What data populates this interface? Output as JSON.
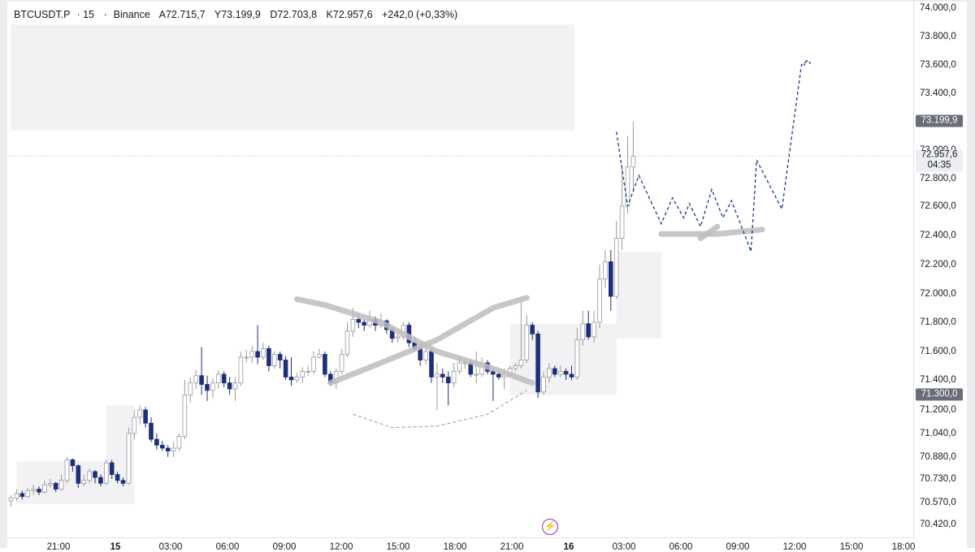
{
  "header": {
    "symbol": "BTCUSDT.P",
    "interval": "15",
    "exchange": "Binance",
    "open": "A72.715,7",
    "high": "Y73.199,9",
    "low": "D72.703,8",
    "close": "K72.957,6",
    "change": "+242,0 (+0,33%)"
  },
  "price_tags": {
    "high_level": "73.199,9",
    "last_price": "72.957,6",
    "countdown": "04:35",
    "low_level": "71.300,0"
  },
  "colors": {
    "bear_candle": "#1e2f7a",
    "bull_candle": "#c9c9c9",
    "zone_fill": "#f2f2f4",
    "projection": "#1e3a8a",
    "drawing_stroke": "#bdbdbd",
    "alert_icon": "#9c27b0"
  },
  "icons": {
    "alert": "lightning-bolt-icon"
  },
  "chart_data": {
    "type": "candlestick",
    "ylim": [
      70330,
      74030
    ],
    "x_tick_labels": [
      "21:00",
      "15",
      "03:00",
      "06:00",
      "09:00",
      "12:00",
      "15:00",
      "18:00",
      "21:00",
      "16",
      "03:00",
      "06:00",
      "09:00",
      "12:00",
      "15:00",
      "18:00"
    ],
    "y_tick_labels": [
      {
        "v": 74000,
        "label": "74.000,0"
      },
      {
        "v": 73800,
        "label": "73.800,0"
      },
      {
        "v": 73600,
        "label": "73.600,0"
      },
      {
        "v": 73400,
        "label": "73.400,0"
      },
      {
        "v": 73000,
        "label": "73.000,0"
      },
      {
        "v": 72800,
        "label": "72.800,0"
      },
      {
        "v": 72600,
        "label": "72.600,0"
      },
      {
        "v": 72400,
        "label": "72.400,0"
      },
      {
        "v": 72200,
        "label": "72.200,0"
      },
      {
        "v": 72000,
        "label": "72.000,0"
      },
      {
        "v": 71800,
        "label": "71.800,0"
      },
      {
        "v": 71600,
        "label": "71.600,0"
      },
      {
        "v": 71400,
        "label": "71.400,0"
      },
      {
        "v": 71200,
        "label": "71.200,0"
      },
      {
        "v": 71040,
        "label": "71.040,0"
      },
      {
        "v": 70880,
        "label": "70.880,0"
      },
      {
        "v": 70730,
        "label": "70.730,0"
      },
      {
        "v": 70570,
        "label": "70.570,0"
      },
      {
        "v": 70420,
        "label": "70.420,0"
      }
    ],
    "candles": [
      [
        70580,
        70600,
        70540,
        70620
      ],
      [
        70600,
        70630,
        70580,
        70660
      ],
      [
        70630,
        70610,
        70590,
        70650
      ],
      [
        70610,
        70650,
        70600,
        70670
      ],
      [
        70650,
        70660,
        70620,
        70690
      ],
      [
        70660,
        70640,
        70620,
        70680
      ],
      [
        70640,
        70690,
        70630,
        70720
      ],
      [
        70690,
        70700,
        70670,
        70730
      ],
      [
        70700,
        70660,
        70640,
        70710
      ],
      [
        70660,
        70720,
        70650,
        70760
      ],
      [
        70720,
        70860,
        70700,
        70880
      ],
      [
        70860,
        70820,
        70780,
        70870
      ],
      [
        70820,
        70700,
        70670,
        70830
      ],
      [
        70700,
        70720,
        70680,
        70760
      ],
      [
        70720,
        70780,
        70700,
        70800
      ],
      [
        70780,
        70740,
        70700,
        70790
      ],
      [
        70740,
        70700,
        70680,
        70760
      ],
      [
        70700,
        70840,
        70690,
        70860
      ],
      [
        70840,
        70760,
        70730,
        70860
      ],
      [
        70760,
        70720,
        70700,
        70780
      ],
      [
        70720,
        70700,
        70680,
        70740
      ],
      [
        70700,
        71040,
        70690,
        71080
      ],
      [
        71040,
        71150,
        71000,
        71200
      ],
      [
        71150,
        71200,
        71100,
        71230
      ],
      [
        71200,
        71110,
        71080,
        71220
      ],
      [
        71110,
        71000,
        70980,
        71150
      ],
      [
        71000,
        70960,
        70930,
        71040
      ],
      [
        70960,
        70940,
        70920,
        70990
      ],
      [
        70940,
        70920,
        70880,
        70960
      ],
      [
        70920,
        70940,
        70880,
        70980
      ],
      [
        70940,
        71020,
        70920,
        71040
      ],
      [
        71020,
        71300,
        71000,
        71400
      ],
      [
        71300,
        71380,
        71250,
        71420
      ],
      [
        71380,
        71430,
        71340,
        71470
      ],
      [
        71430,
        71370,
        71300,
        71630
      ],
      [
        71370,
        71330,
        71260,
        71430
      ],
      [
        71330,
        71380,
        71280,
        71410
      ],
      [
        71380,
        71440,
        71340,
        71470
      ],
      [
        71440,
        71380,
        71350,
        71460
      ],
      [
        71380,
        71340,
        71300,
        71420
      ],
      [
        71340,
        71380,
        71260,
        71420
      ],
      [
        71380,
        71560,
        71360,
        71600
      ],
      [
        71560,
        71560,
        71520,
        71610
      ],
      [
        71560,
        71600,
        71520,
        71640
      ],
      [
        71600,
        71560,
        71510,
        71780
      ],
      [
        71560,
        71620,
        71540,
        71660
      ],
      [
        71620,
        71500,
        71460,
        71640
      ],
      [
        71500,
        71580,
        71480,
        71600
      ],
      [
        71580,
        71540,
        71480,
        71600
      ],
      [
        71540,
        71420,
        71400,
        71570
      ],
      [
        71420,
        71400,
        71360,
        71560
      ],
      [
        71400,
        71420,
        71380,
        71450
      ],
      [
        71420,
        71460,
        71380,
        71490
      ],
      [
        71460,
        71460,
        71430,
        71500
      ],
      [
        71460,
        71560,
        71440,
        71600
      ],
      [
        71560,
        71580,
        71550,
        71620
      ],
      [
        71580,
        71440,
        71420,
        71600
      ],
      [
        71440,
        71380,
        71360,
        71460
      ],
      [
        71380,
        71460,
        71340,
        71480
      ],
      [
        71460,
        71580,
        71440,
        71620
      ],
      [
        71580,
        71740,
        71560,
        71800
      ],
      [
        71740,
        71820,
        71700,
        71900
      ],
      [
        71820,
        71800,
        71760,
        71860
      ],
      [
        71800,
        71780,
        71740,
        71820
      ],
      [
        71780,
        71820,
        71760,
        71880
      ],
      [
        71820,
        71780,
        71740,
        71840
      ],
      [
        71780,
        71810,
        71760,
        71860
      ],
      [
        71810,
        71750,
        71720,
        71820
      ],
      [
        71750,
        71690,
        71660,
        71770
      ],
      [
        71690,
        71700,
        71660,
        71730
      ],
      [
        71700,
        71780,
        71680,
        71800
      ],
      [
        71780,
        71660,
        71630,
        71800
      ],
      [
        71660,
        71620,
        71600,
        71700
      ],
      [
        71620,
        71540,
        71500,
        71640
      ],
      [
        71540,
        71600,
        71510,
        71620
      ],
      [
        71600,
        71420,
        71380,
        71620
      ],
      [
        71420,
        71440,
        71200,
        71520
      ],
      [
        71440,
        71420,
        71380,
        71480
      ],
      [
        71420,
        71380,
        71230,
        71460
      ],
      [
        71380,
        71460,
        71350,
        71520
      ],
      [
        71460,
        71520,
        71440,
        71560
      ],
      [
        71520,
        71520,
        71480,
        71560
      ],
      [
        71520,
        71440,
        71420,
        71540
      ],
      [
        71440,
        71440,
        71380,
        71600
      ],
      [
        71440,
        71520,
        71420,
        71560
      ],
      [
        71520,
        71460,
        71440,
        71540
      ],
      [
        71460,
        71440,
        71260,
        71480
      ],
      [
        71440,
        71420,
        71400,
        71460
      ],
      [
        71420,
        71440,
        71340,
        71480
      ],
      [
        71440,
        71480,
        71420,
        71500
      ],
      [
        71480,
        71500,
        71460,
        71520
      ],
      [
        71500,
        71540,
        71480,
        71980
      ],
      [
        71540,
        71780,
        71520,
        71850
      ],
      [
        71780,
        71720,
        71680,
        71800
      ],
      [
        71720,
        71320,
        71280,
        71740
      ],
      [
        71320,
        71420,
        71300,
        71460
      ],
      [
        71420,
        71480,
        71380,
        71520
      ],
      [
        71480,
        71440,
        71420,
        71500
      ],
      [
        71440,
        71460,
        71420,
        71500
      ],
      [
        71460,
        71440,
        71400,
        71480
      ],
      [
        71440,
        71420,
        71400,
        71500
      ],
      [
        71420,
        71680,
        71400,
        71760
      ],
      [
        71680,
        71790,
        71640,
        71880
      ],
      [
        71790,
        71700,
        71680,
        71880
      ],
      [
        71700,
        71800,
        71660,
        71880
      ],
      [
        71800,
        72100,
        71760,
        72200
      ],
      [
        72100,
        72220,
        72040,
        72300
      ],
      [
        72220,
        71980,
        71880,
        72300
      ],
      [
        71980,
        72380,
        71960,
        72500
      ],
      [
        72380,
        72600,
        72300,
        72900
      ],
      [
        72600,
        72880,
        72550,
        73100
      ],
      [
        72880,
        72957,
        72700,
        73199
      ]
    ],
    "zones": [
      {
        "label": "upper-supply-zone",
        "x_start": 0,
        "x_end": 100.5,
        "y_low": 73140,
        "y_high": 73885
      },
      {
        "label": "demand-zone-right",
        "x_start": 108,
        "x_end": 116,
        "y_low": 71690,
        "y_high": 72285
      },
      {
        "label": "demand-zone-lower",
        "x_start": 89,
        "x_end": 108,
        "y_low": 71300,
        "y_high": 71790
      },
      {
        "label": "demand-zone-left",
        "x_start": 1,
        "x_end": 22,
        "y_low": 70560,
        "y_high": 70850
      },
      {
        "label": "demand-zone-mid",
        "x_start": 17,
        "x_end": 22,
        "y_low": 70560,
        "y_high": 71230
      }
    ],
    "projection": [
      {
        "x": 108,
        "y": 73130
      },
      {
        "x": 110,
        "y": 72600
      },
      {
        "x": 112,
        "y": 72820
      },
      {
        "x": 116,
        "y": 72480
      },
      {
        "x": 118,
        "y": 72660
      },
      {
        "x": 120,
        "y": 72520
      },
      {
        "x": 121,
        "y": 72620
      },
      {
        "x": 123,
        "y": 72460
      },
      {
        "x": 125,
        "y": 72720
      },
      {
        "x": 127,
        "y": 72520
      },
      {
        "x": 128.5,
        "y": 72640
      },
      {
        "x": 130.5,
        "y": 72440
      },
      {
        "x": 132,
        "y": 72290
      },
      {
        "x": 133,
        "y": 72930
      },
      {
        "x": 137.5,
        "y": 72580
      },
      {
        "x": 141,
        "y": 73600
      },
      {
        "x": 142,
        "y": 73630
      }
    ],
    "projection_arrow_tip": {
      "x": 142,
      "y": 73630
    },
    "drawings": [
      {
        "kind": "line",
        "label": "downward-swoosh",
        "points": [
          [
            51,
            71960
          ],
          [
            56,
            71920
          ],
          [
            66,
            71800
          ],
          [
            76,
            71600
          ],
          [
            86,
            71480
          ],
          [
            93,
            71380
          ]
        ]
      },
      {
        "kind": "line",
        "label": "upward-swoosh",
        "points": [
          [
            57,
            71380
          ],
          [
            66,
            71520
          ],
          [
            76,
            71680
          ],
          [
            86,
            71900
          ],
          [
            92,
            71970
          ]
        ]
      },
      {
        "kind": "line",
        "label": "horizontal-mark",
        "points": [
          [
            116,
            72410
          ],
          [
            126,
            72410
          ],
          [
            134,
            72440
          ]
        ]
      },
      {
        "kind": "line",
        "label": "cross-mark",
        "points": [
          [
            123,
            72380
          ],
          [
            126,
            72460
          ]
        ]
      },
      {
        "kind": "dashed",
        "label": "curve-under-lows",
        "points": [
          [
            61,
            71170
          ],
          [
            68,
            71080
          ],
          [
            76,
            71090
          ],
          [
            85,
            71170
          ],
          [
            92,
            71330
          ]
        ]
      }
    ]
  }
}
